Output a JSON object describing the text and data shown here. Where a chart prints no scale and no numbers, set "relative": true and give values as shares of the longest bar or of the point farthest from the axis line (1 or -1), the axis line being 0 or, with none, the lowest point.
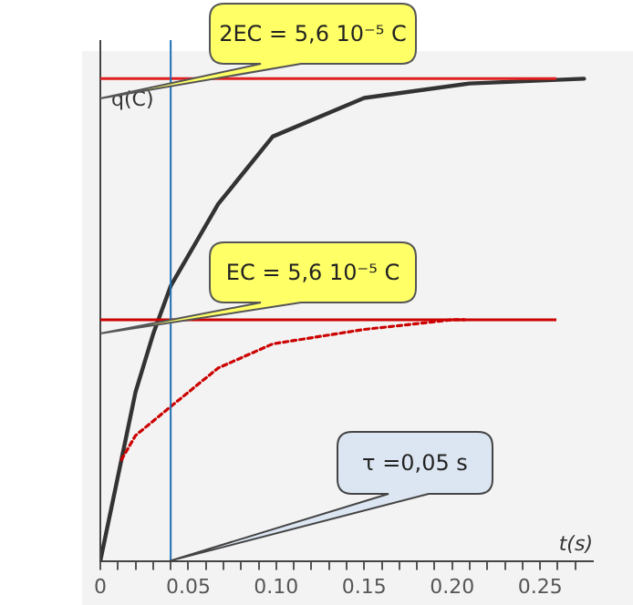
{
  "chart_data": {
    "type": "line",
    "relative": true,
    "xlabel": "t(s)",
    "ylabel": "q(C)",
    "xlim": [
      0,
      0.28
    ],
    "xticks": [
      {
        "value": 0,
        "label": "0"
      },
      {
        "value": 0.01,
        "label": null
      },
      {
        "value": 0.02,
        "label": null
      },
      {
        "value": 0.03,
        "label": null
      },
      {
        "value": 0.04,
        "label": null
      },
      {
        "value": 0.05,
        "label": "0.05"
      },
      {
        "value": 0.06,
        "label": null
      },
      {
        "value": 0.07,
        "label": null
      },
      {
        "value": 0.08,
        "label": null
      },
      {
        "value": 0.09,
        "label": null
      },
      {
        "value": 0.1,
        "label": "0.10"
      },
      {
        "value": 0.11,
        "label": null
      },
      {
        "value": 0.12,
        "label": null
      },
      {
        "value": 0.13,
        "label": null
      },
      {
        "value": 0.14,
        "label": null
      },
      {
        "value": 0.15,
        "label": "0.15"
      },
      {
        "value": 0.16,
        "label": null
      },
      {
        "value": 0.17,
        "label": null
      },
      {
        "value": 0.18,
        "label": null
      },
      {
        "value": 0.19,
        "label": null
      },
      {
        "value": 0.2,
        "label": "0.20"
      },
      {
        "value": 0.21,
        "label": null
      },
      {
        "value": 0.22,
        "label": null
      },
      {
        "value": 0.23,
        "label": null
      },
      {
        "value": 0.24,
        "label": null
      },
      {
        "value": 0.25,
        "label": "0.25"
      },
      {
        "value": 0.26,
        "label": null
      },
      {
        "value": 0.27,
        "label": null
      }
    ],
    "grid": false,
    "legend": false,
    "marker": "none",
    "series": [
      {
        "color": "#333333",
        "line_style": "solid",
        "x": [
          0,
          0.012,
          0.02,
          0.03,
          0.04,
          0.067,
          0.098,
          0.15,
          0.21,
          0.275
        ],
        "values": [
          0,
          0.21,
          0.35,
          0.47,
          0.57,
          0.74,
          0.88,
          0.96,
          0.99,
          1
        ]
      },
      {
        "color": "#cc0000",
        "line_style": "dotted",
        "x": [
          0.012,
          0.02,
          0.04,
          0.067,
          0.098,
          0.15,
          0.2,
          0.207
        ],
        "values": [
          0.21,
          0.26,
          0.32,
          0.4,
          0.45,
          0.48,
          0.5,
          0.5
        ]
      }
    ],
    "ref_lines": [
      {
        "axis": "y",
        "value": 1,
        "label": null,
        "color": "#e02020"
      },
      {
        "axis": "y",
        "value": 0.5,
        "label": null,
        "color": "#cc0000"
      },
      {
        "axis": "x",
        "value": 0.04,
        "label": null,
        "color": "#1f6fb4"
      }
    ],
    "annotations": [
      "2EC = 5,6 10⁻⁵ C",
      "EC = 5,6 10⁻⁵ C",
      "τ =0,05 s"
    ]
  }
}
